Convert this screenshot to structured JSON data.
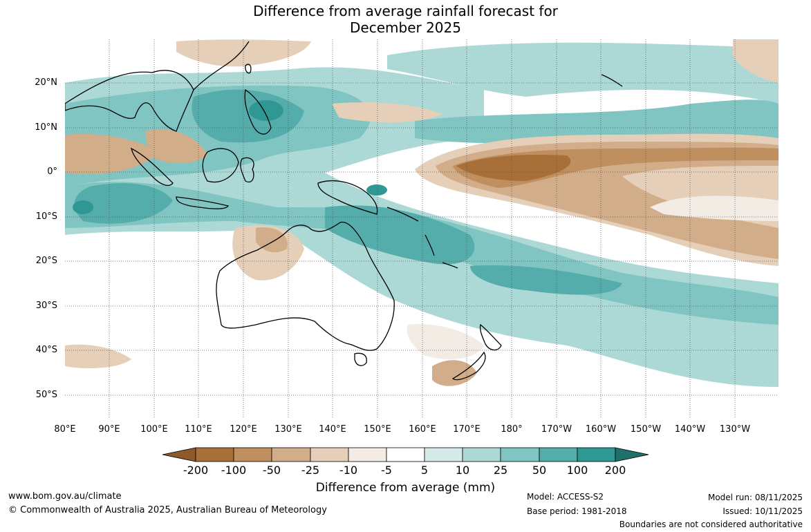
{
  "title": {
    "line1": "Difference from average rainfall forecast for",
    "line2": "December 2025"
  },
  "map": {
    "lat_labels": [
      "20°N",
      "10°N",
      "0°",
      "10°S",
      "20°S",
      "30°S",
      "40°S",
      "50°S"
    ],
    "lon_labels": [
      "80°E",
      "90°E",
      "100°E",
      "110°E",
      "120°E",
      "130°E",
      "140°E",
      "150°E",
      "160°E",
      "170°E",
      "180°",
      "170°W",
      "160°W",
      "150°W",
      "140°W",
      "130°W"
    ]
  },
  "colorbar": {
    "labels": [
      "-200",
      "-100",
      "-50",
      "-25",
      "-10",
      "-5",
      "5",
      "10",
      "25",
      "50",
      "100",
      "200"
    ],
    "colors": [
      "#a86f38",
      "#bf8f60",
      "#d2ad8a",
      "#e5cfb8",
      "#f3ece4",
      "#ffffff",
      "#d4ebe9",
      "#acd9d6",
      "#80c5c1",
      "#55adab",
      "#2f9895"
    ],
    "title": "Difference from average (mm)"
  },
  "footer": {
    "website": "www.bom.gov.au/climate",
    "copyright": "© Commonwealth of Australia 2025, Australian Bureau of Meteorology",
    "model": "Model: ACCESS-S2",
    "base_period": "Base period: 1981-2018",
    "model_run": "Model run: 08/11/2025",
    "issued": "Issued: 10/11/2025",
    "disclaimer": "Boundaries are not considered authoritative"
  }
}
